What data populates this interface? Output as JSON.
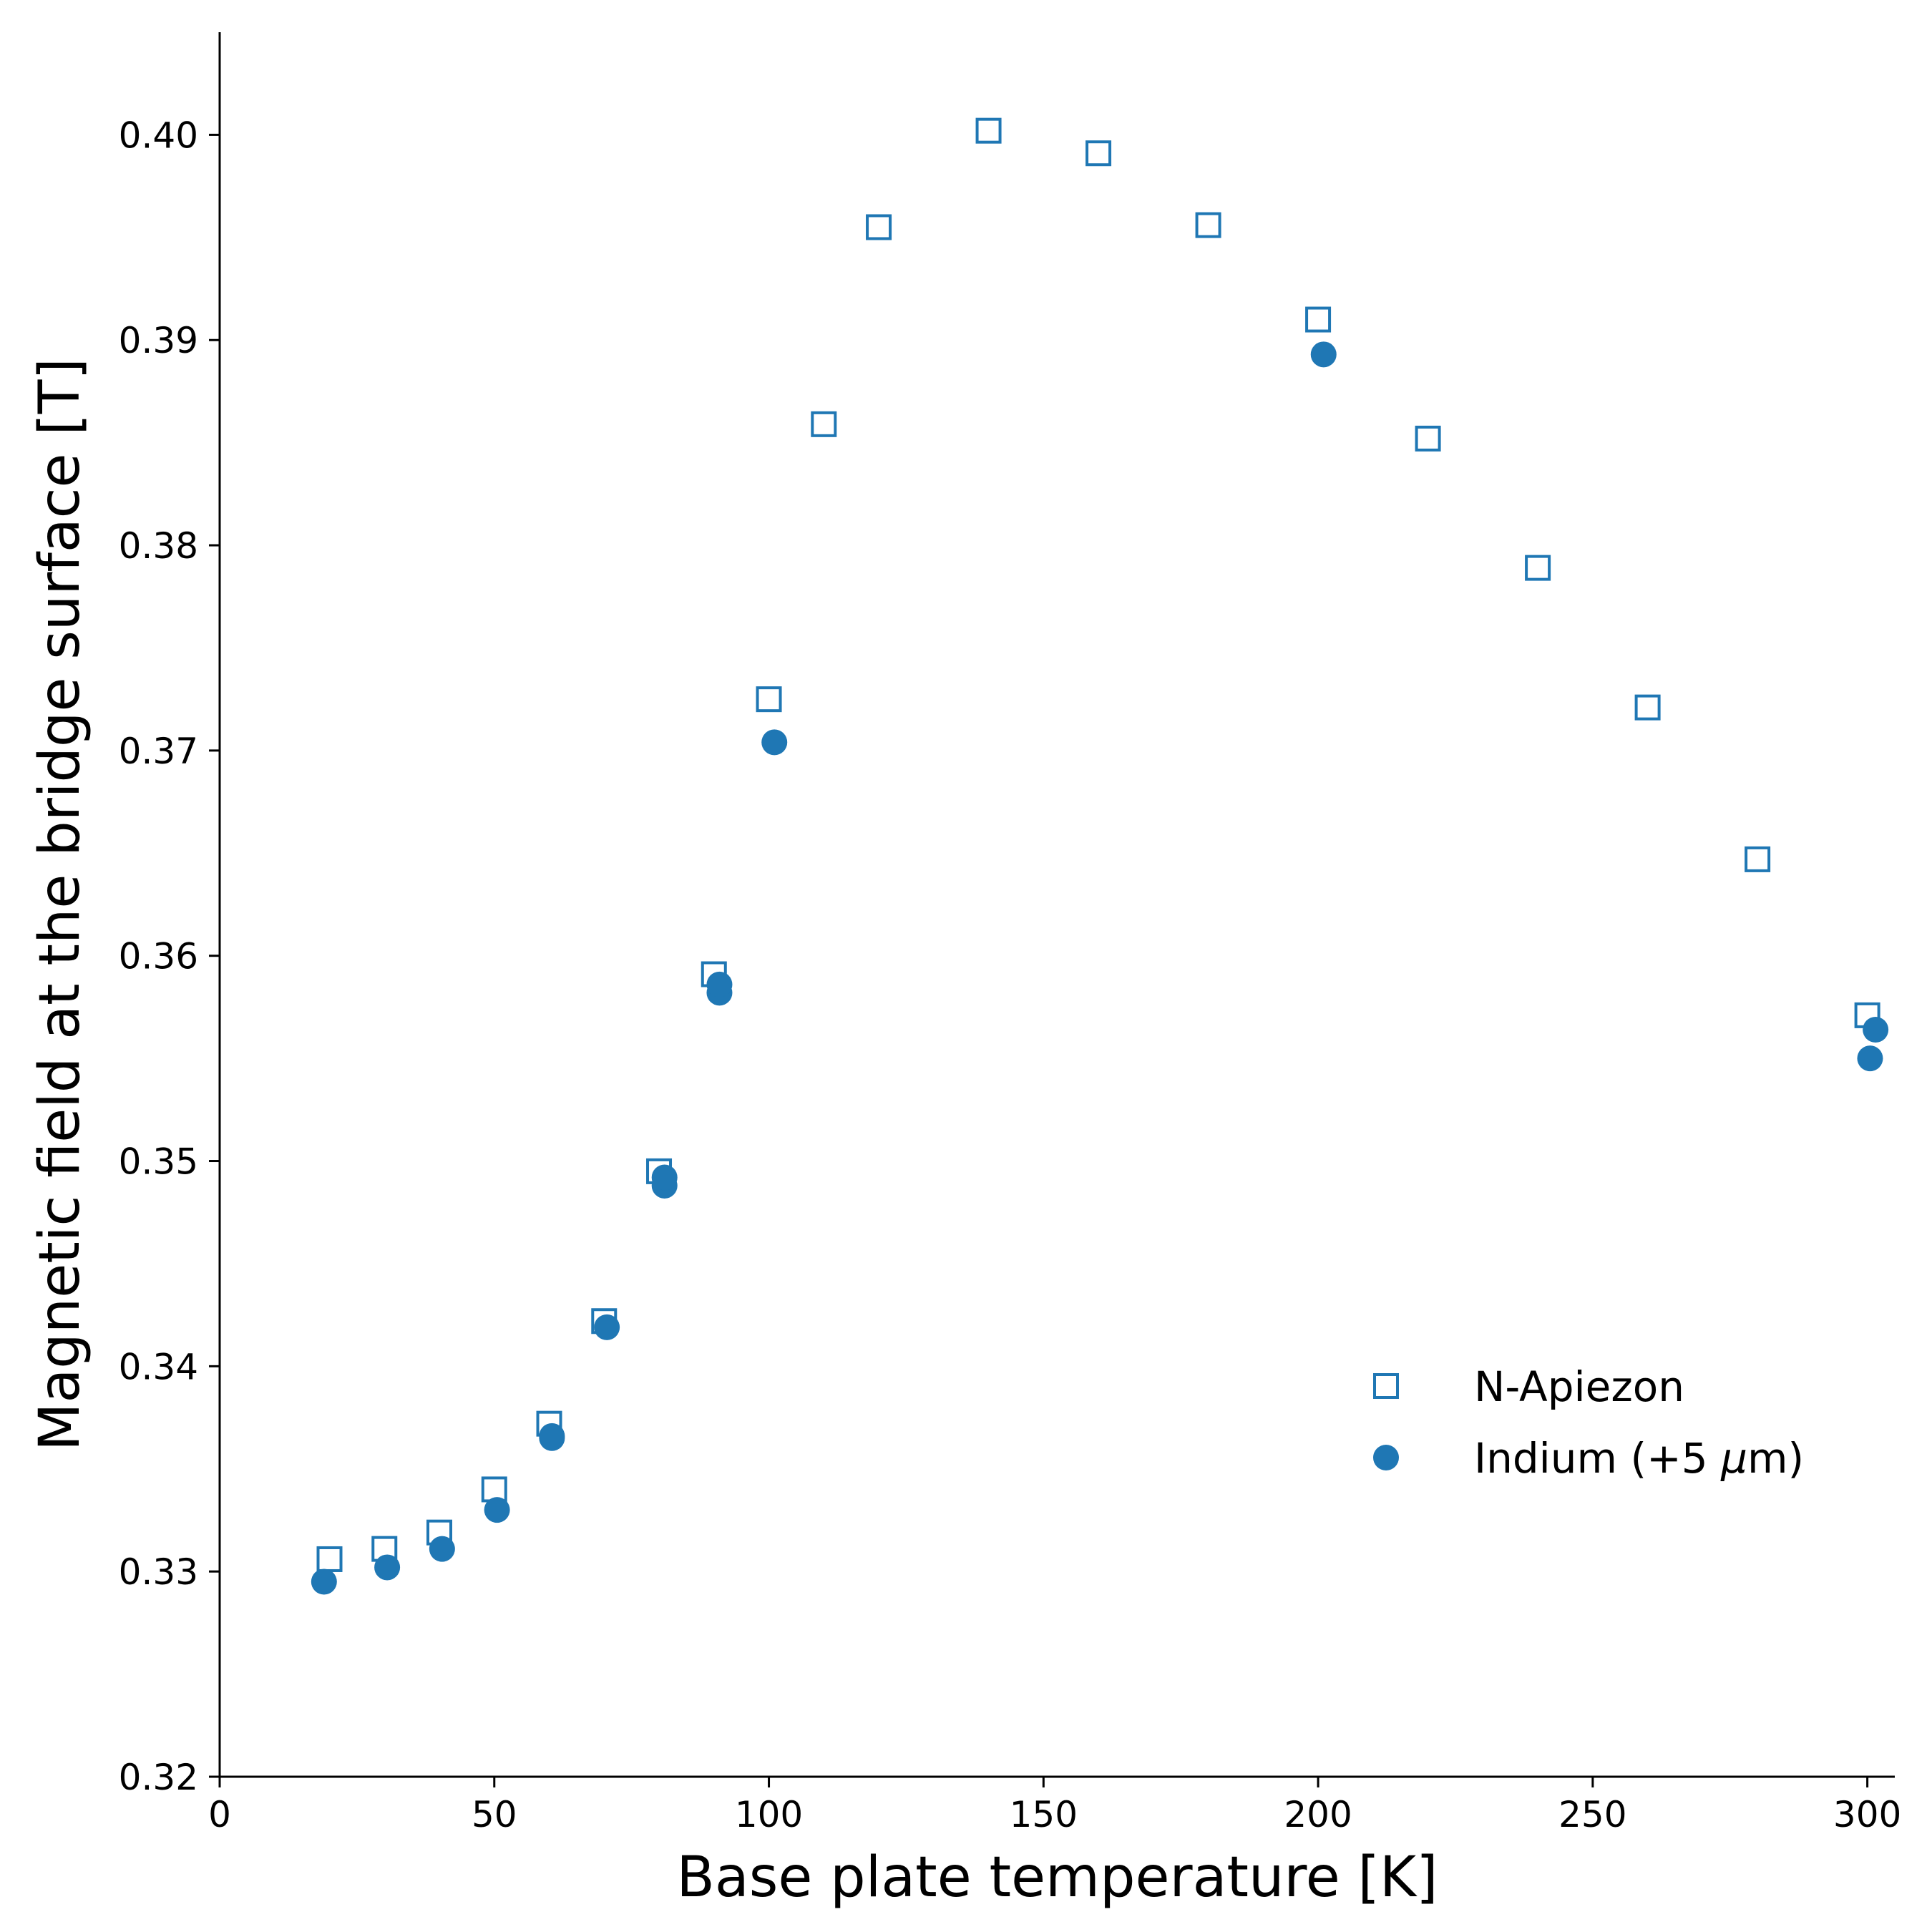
{
  "chart_data": {
    "type": "scatter",
    "xlabel": "Base plate temperature [K]",
    "ylabel": "Magnetic field at the bridge surface [T]",
    "xlim": [
      0,
      305
    ],
    "ylim": [
      0.32,
      0.405
    ],
    "xticks": [
      0,
      50,
      100,
      150,
      200,
      250,
      300
    ],
    "xtick_labels": [
      "0",
      "50",
      "100",
      "150",
      "200",
      "250",
      "300"
    ],
    "yticks": [
      0.32,
      0.33,
      0.34,
      0.35,
      0.36,
      0.37,
      0.38,
      0.39,
      0.4
    ],
    "ytick_labels": [
      "0.32",
      "0.33",
      "0.34",
      "0.35",
      "0.36",
      "0.37",
      "0.38",
      "0.39",
      "0.40"
    ],
    "grid": false,
    "legend_position": "lower-right",
    "series": [
      {
        "name": "N-Apiezon",
        "marker": "open-square",
        "color": "#1f77b4",
        "points": [
          [
            20,
            0.3306
          ],
          [
            30,
            0.3311
          ],
          [
            40,
            0.3319
          ],
          [
            50,
            0.334
          ],
          [
            60,
            0.3372
          ],
          [
            70,
            0.3422
          ],
          [
            80,
            0.3495
          ],
          [
            90,
            0.3591
          ],
          [
            100,
            0.3725
          ],
          [
            110,
            0.3859
          ],
          [
            120,
            0.3955
          ],
          [
            140,
            0.4002
          ],
          [
            160,
            0.3991
          ],
          [
            180,
            0.3956
          ],
          [
            200,
            0.391
          ],
          [
            220,
            0.3852
          ],
          [
            240,
            0.3789
          ],
          [
            260,
            0.3721
          ],
          [
            280,
            0.3647
          ],
          [
            300,
            0.3571
          ]
        ]
      },
      {
        "name_prefix": "Indium (+5 ",
        "name_mu": "μ",
        "name_suffix": "m)",
        "marker": "filled-circle",
        "color": "#1f77b4",
        "points": [
          [
            19,
            0.3295
          ],
          [
            30.5,
            0.3302
          ],
          [
            40.5,
            0.3311
          ],
          [
            50.5,
            0.333
          ],
          [
            60.5,
            0.3366
          ],
          [
            60.5,
            0.3365
          ],
          [
            70.5,
            0.3419
          ],
          [
            81,
            0.3488
          ],
          [
            81,
            0.3492
          ],
          [
            91,
            0.3582
          ],
          [
            91,
            0.3586
          ],
          [
            101,
            0.3704
          ],
          [
            201,
            0.3893
          ],
          [
            300.5,
            0.355
          ],
          [
            301.5,
            0.3564
          ]
        ]
      }
    ]
  }
}
